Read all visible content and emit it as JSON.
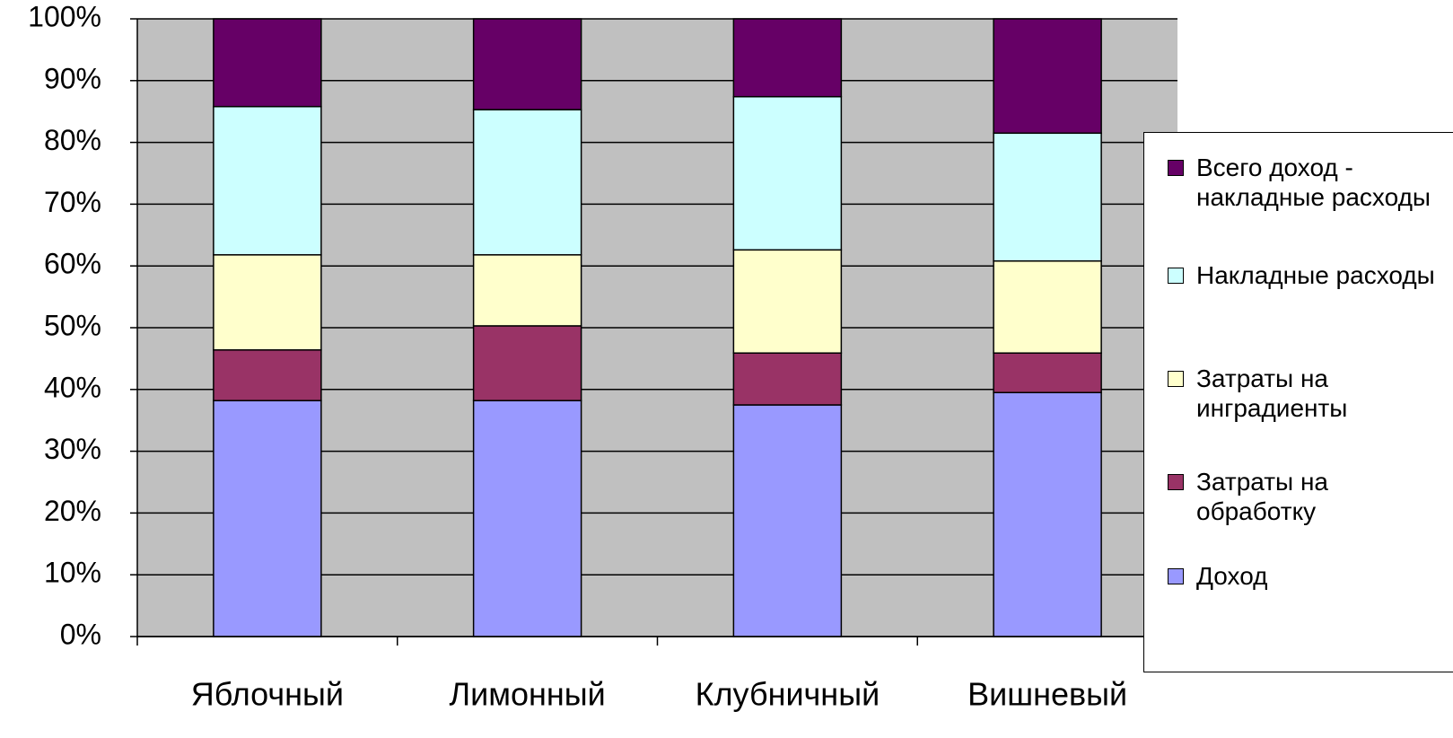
{
  "chart_data": {
    "type": "stacked_bar",
    "categories": [
      "Яблочный",
      "Лимонный",
      "Клубничный",
      "Вишневый"
    ],
    "series": [
      {
        "name": "Доход",
        "color": "#9999ff",
        "values": [
          38.2,
          38.2,
          37.5,
          39.5
        ]
      },
      {
        "name": "Затраты на обработку",
        "color": "#993366",
        "values": [
          8.2,
          12.1,
          8.4,
          6.4
        ]
      },
      {
        "name": "Затраты на инградиенты",
        "color": "#ffffcc",
        "values": [
          15.4,
          11.5,
          16.7,
          14.9
        ]
      },
      {
        "name": "Накладные расходы",
        "color": "#ccffff",
        "values": [
          24.0,
          23.5,
          24.8,
          20.7
        ]
      },
      {
        "name": "Всего доход - накладные расходы",
        "color": "#660066",
        "values": [
          14.2,
          14.7,
          12.6,
          18.5
        ]
      }
    ],
    "ylim": [
      0,
      100
    ],
    "yticks": [
      {
        "value": 0,
        "label": "0%"
      },
      {
        "value": 10,
        "label": "10%"
      },
      {
        "value": 20,
        "label": "20%"
      },
      {
        "value": 30,
        "label": "30%"
      },
      {
        "value": 40,
        "label": "40%"
      },
      {
        "value": 50,
        "label": "50%"
      },
      {
        "value": 60,
        "label": "60%"
      },
      {
        "value": 70,
        "label": "70%"
      },
      {
        "value": 80,
        "label": "80%"
      },
      {
        "value": 90,
        "label": "90%"
      },
      {
        "value": 100,
        "label": "100%"
      }
    ],
    "grid": true,
    "plot_background": "#c0c0c0",
    "legend": "right"
  }
}
